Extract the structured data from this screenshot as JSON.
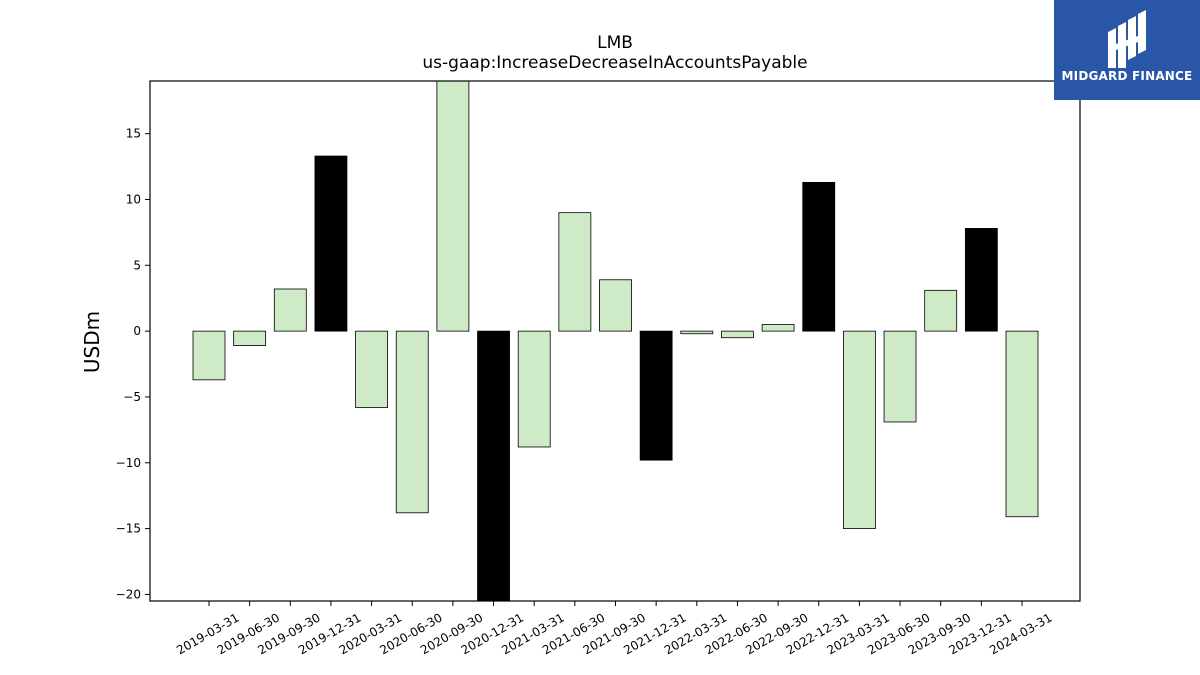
{
  "chart_data": {
    "type": "bar",
    "title": "LMB",
    "subtitle": "us-gaap:IncreaseDecreaseInAccountsPayable",
    "xlabel": "",
    "ylabel": "USDm",
    "ylim": [
      -20.5,
      19
    ],
    "yticks": [
      -20,
      -15,
      -10,
      -5,
      0,
      5,
      10,
      15
    ],
    "grid": false,
    "categories": [
      "2019-03-31",
      "2019-06-30",
      "2019-09-30",
      "2019-12-31",
      "2020-03-31",
      "2020-06-30",
      "2020-09-30",
      "2020-12-31",
      "2021-03-31",
      "2021-06-30",
      "2021-09-30",
      "2021-12-31",
      "2022-03-31",
      "2022-06-30",
      "2022-09-30",
      "2022-12-31",
      "2023-03-31",
      "2023-06-30",
      "2023-09-30",
      "2023-12-31",
      "2024-03-31"
    ],
    "values": [
      -3.7,
      -1.1,
      3.2,
      13.3,
      -5.8,
      -13.8,
      19.5,
      -21.5,
      -8.8,
      9.0,
      3.9,
      -9.8,
      -0.2,
      -0.5,
      0.5,
      11.3,
      -15.0,
      -6.9,
      3.1,
      7.8,
      -14.1
    ],
    "annual": [
      false,
      false,
      false,
      true,
      false,
      false,
      false,
      true,
      false,
      false,
      false,
      true,
      false,
      false,
      false,
      true,
      false,
      false,
      false,
      true,
      false
    ],
    "colors": {
      "quarter": "#cfeac7",
      "annual": "#000000",
      "edge": "#000000"
    }
  },
  "logo": {
    "text": "MIDGARD FINANCE",
    "icon": "midgard-logo-icon",
    "background": "#2a56a8"
  }
}
